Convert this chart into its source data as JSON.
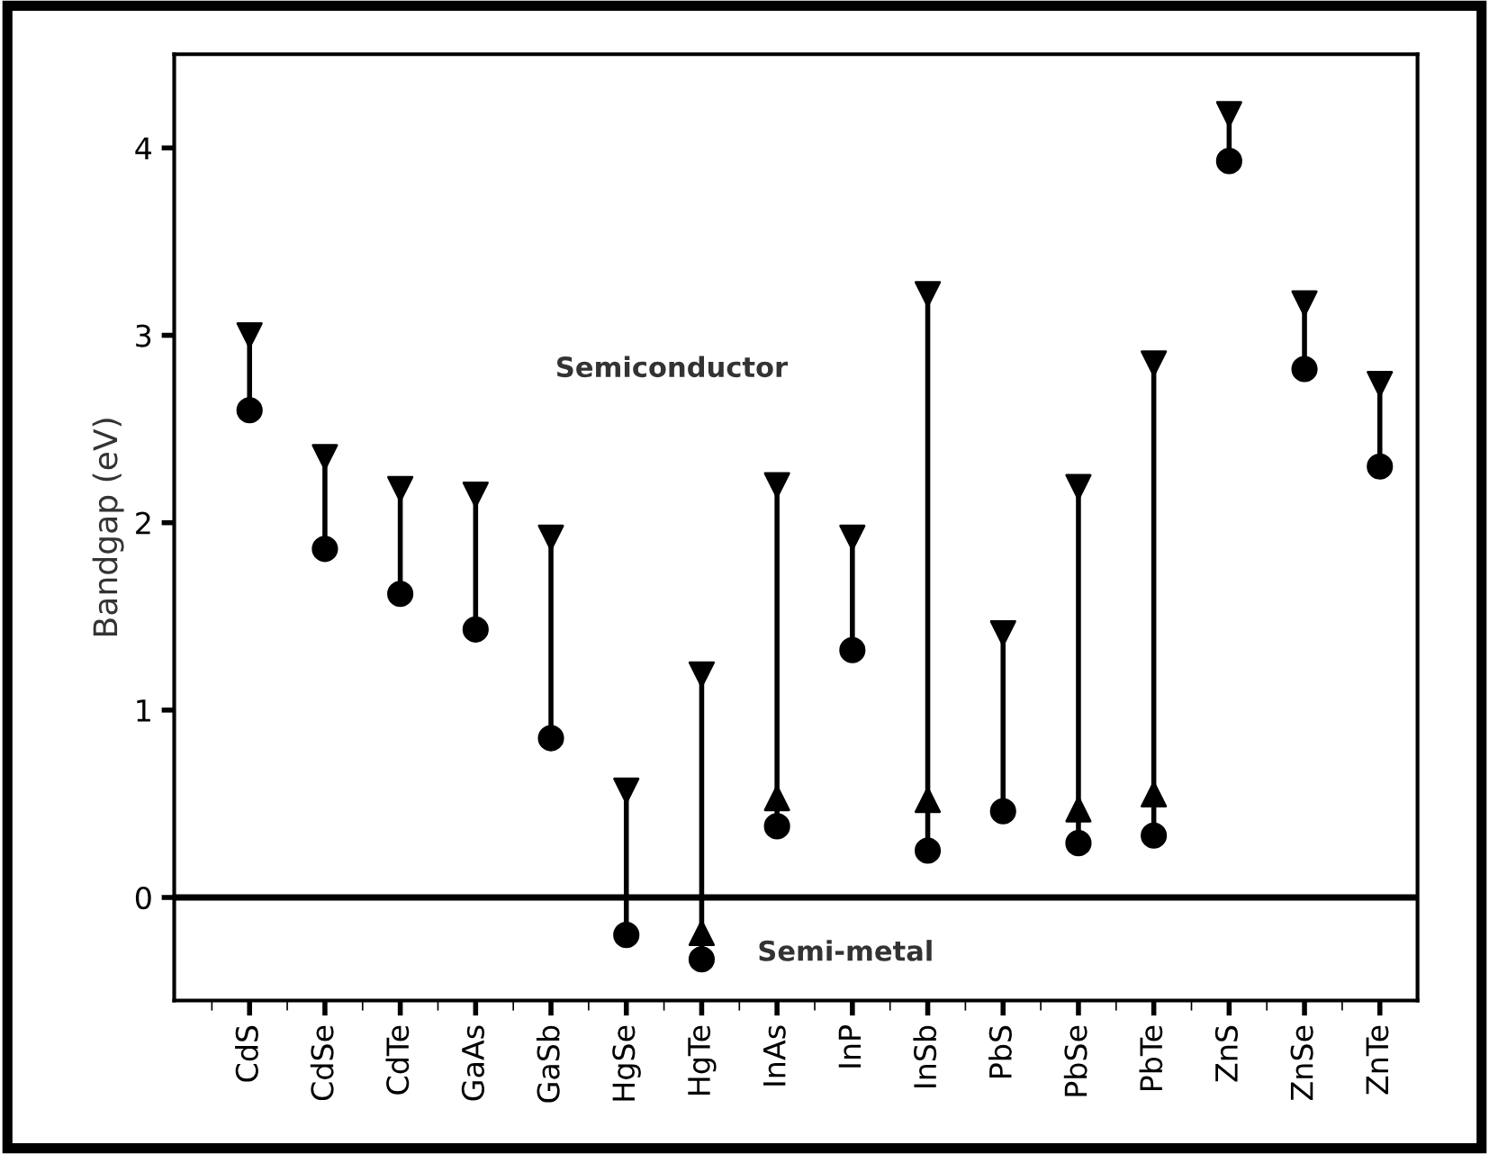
{
  "chart_data": {
    "type": "scatter",
    "ylabel": "Bandgap (eV)",
    "categories": [
      "CdS",
      "CdSe",
      "CdTe",
      "GaAs",
      "GaSb",
      "HgSe",
      "HgTe",
      "InAs",
      "InP",
      "InSb",
      "PbS",
      "PbSe",
      "PbTe",
      "ZnS",
      "ZnSe",
      "ZnTe"
    ],
    "series": [
      {
        "color": "#000000",
        "marker": "circle",
        "values": [
          2.6,
          1.86,
          1.62,
          1.43,
          0.85,
          -0.2,
          -0.33,
          0.38,
          1.32,
          0.25,
          0.46,
          0.29,
          0.33,
          3.93,
          2.82,
          2.3
        ]
      },
      {
        "color": "#000000",
        "marker": "triangle",
        "values": [
          null,
          null,
          null,
          null,
          null,
          null,
          -0.19,
          0.53,
          null,
          0.52,
          null,
          0.47,
          0.55,
          null,
          null,
          null
        ]
      },
      {
        "color": "#000000",
        "marker": "triangle_down",
        "values": [
          3.0,
          2.35,
          2.18,
          2.15,
          1.92,
          0.57,
          1.19,
          2.2,
          1.92,
          3.22,
          1.41,
          2.19,
          2.85,
          4.18,
          3.17,
          2.74
        ]
      }
    ],
    "ylim": [
      -0.55,
      4.5
    ],
    "yticks": [
      0,
      1,
      2,
      3,
      4
    ],
    "grid": false,
    "ref_lines": [
      {
        "axis": "y",
        "value": 0,
        "color": "#000000"
      }
    ],
    "annotations": [
      "Semiconductor",
      "Semi-metal"
    ]
  }
}
